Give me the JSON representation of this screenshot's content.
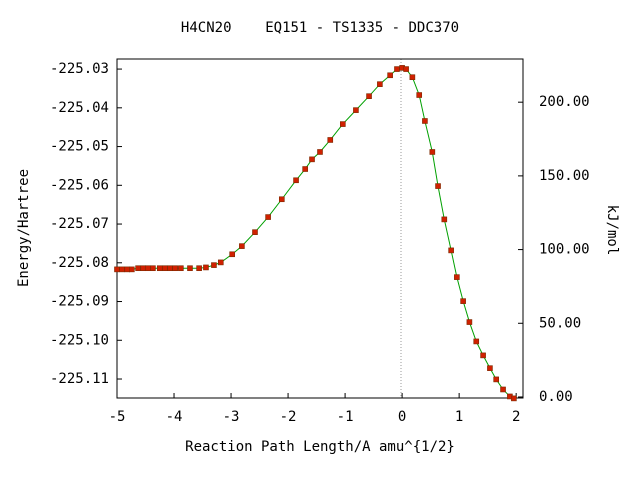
{
  "chart_data": {
    "type": "line",
    "title": "H4CN20    EQ151 - TS1335 - DDC370",
    "xlabel": "Reaction Path Length/A amu^{1/2}",
    "ylabel": "Energy/Hartree",
    "y2label": "kJ/mol",
    "x": [
      -5.0,
      -4.91,
      -4.82,
      -4.74,
      -4.63,
      -4.54,
      -4.46,
      -4.37,
      -4.25,
      -4.16,
      -4.07,
      -3.98,
      -3.88,
      -3.72,
      -3.56,
      -3.44,
      -3.3,
      -3.18,
      -2.98,
      -2.81,
      -2.58,
      -2.35,
      -2.11,
      -1.86,
      -1.7,
      -1.58,
      -1.44,
      -1.26,
      -1.04,
      -0.81,
      -0.58,
      -0.39,
      -0.21,
      -0.09,
      0.0,
      0.07,
      0.18,
      0.3,
      0.4,
      0.53,
      0.63,
      0.74,
      0.86,
      0.96,
      1.07,
      1.18,
      1.3,
      1.42,
      1.54,
      1.65,
      1.77,
      1.89,
      1.96
    ],
    "values": [
      -225.0817,
      -225.0817,
      -225.0817,
      -225.0817,
      -225.0814,
      -225.0814,
      -225.0814,
      -225.0814,
      -225.0814,
      -225.0814,
      -225.0814,
      -225.0814,
      -225.0814,
      -225.0814,
      -225.0814,
      -225.0812,
      -225.0806,
      -225.0799,
      -225.0778,
      -225.0757,
      -225.0721,
      -225.0682,
      -225.0636,
      -225.0587,
      -225.0558,
      -225.0533,
      -225.0514,
      -225.0483,
      -225.0442,
      -225.0406,
      -225.037,
      -225.0339,
      -225.0316,
      -225.03,
      -225.0297,
      -225.03,
      -225.0321,
      -225.0367,
      -225.0434,
      -225.0514,
      -225.0602,
      -225.0688,
      -225.0768,
      -225.0837,
      -225.0899,
      -225.0953,
      -225.1003,
      -225.1039,
      -225.1072,
      -225.1101,
      -225.1127,
      -225.1145,
      -225.115
    ],
    "color": "#00a000",
    "marker_color": "#d02000",
    "xlim": [
      -5,
      2.12
    ],
    "xticks": [
      -5,
      -4,
      -3,
      -2,
      -1,
      0,
      1,
      2
    ],
    "ylim": [
      -225.1149,
      -225.0274
    ],
    "yticks": [
      -225.03,
      -225.04,
      -225.05,
      -225.06,
      -225.07,
      -225.08,
      -225.09,
      {
        "value": -225.1,
        "label": "-225.10"
      },
      -225.11
    ],
    "y2lim": [
      -0.7,
      229.3
    ],
    "y2ticks": [
      {
        "value": 0,
        "label": "0.00"
      },
      {
        "value": 50,
        "label": "50.00"
      },
      {
        "value": 100,
        "label": "100.00"
      },
      {
        "value": 150,
        "label": "150.00"
      },
      {
        "value": 200,
        "label": "200.00"
      }
    ]
  }
}
